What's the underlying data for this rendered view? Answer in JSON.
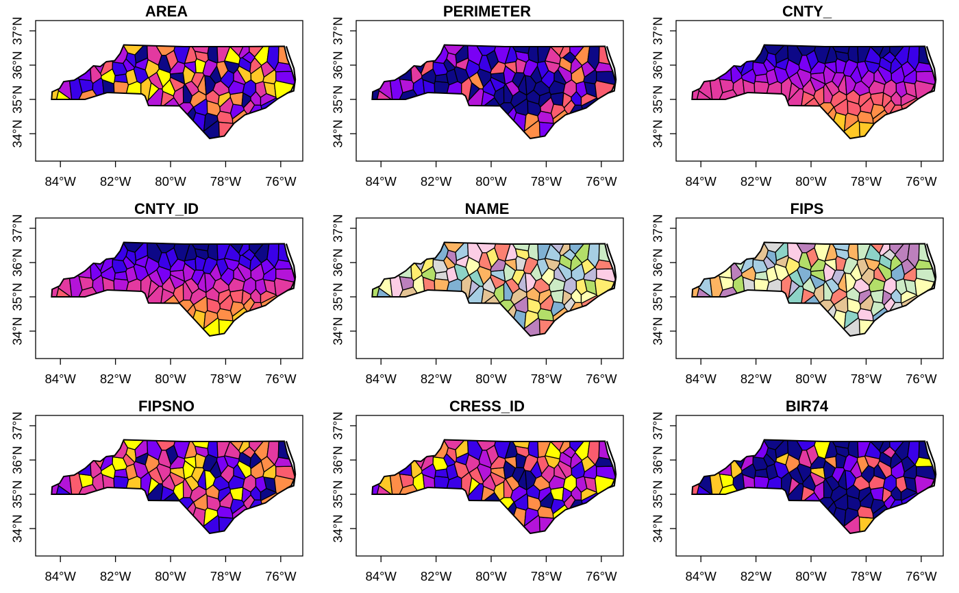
{
  "figure": {
    "rows": 3,
    "cols": 3,
    "x_tick_labels": [
      "84°W",
      "82°W",
      "80°W",
      "78°W",
      "76°W"
    ],
    "y_tick_labels": [
      "34°N",
      "35°N",
      "36°N",
      "37°N"
    ],
    "x_range_deg": [
      -84.9,
      -75.2
    ],
    "y_range_deg": [
      33.2,
      37.3
    ]
  },
  "palettes": {
    "continuous": [
      "#0D0887",
      "#3A00E8",
      "#7A00F5",
      "#B414D8",
      "#E339A0",
      "#FA5C6E",
      "#FF8E48",
      "#FFC827",
      "#FFFF00"
    ],
    "categorical": [
      "#8DD3C7",
      "#FFFFB3",
      "#BEBADA",
      "#FB8072",
      "#80B1D3",
      "#FDB462",
      "#B3DE69",
      "#FCCDE5",
      "#D9D9D9",
      "#BC80BD",
      "#CCEBC5",
      "#FFED6F",
      "#A6CEE3",
      "#E5C494"
    ]
  },
  "panels": [
    {
      "id": "area",
      "title": "AREA",
      "mode": "continuous",
      "pattern": "hash",
      "seed": 3
    },
    {
      "id": "perimeter",
      "title": "PERIMETER",
      "mode": "continuous",
      "pattern": "hashlow",
      "seed": 7
    },
    {
      "id": "cnty",
      "title": "CNTY_",
      "mode": "continuous",
      "pattern": "southgrad",
      "seed": 11
    },
    {
      "id": "cnty-id",
      "title": "CNTY_ID",
      "mode": "continuous",
      "pattern": "southgrad",
      "seed": 13
    },
    {
      "id": "name",
      "title": "NAME",
      "mode": "categorical",
      "pattern": "cat",
      "seed": 17
    },
    {
      "id": "fips",
      "title": "FIPS",
      "mode": "categorical",
      "pattern": "cat",
      "seed": 23
    },
    {
      "id": "fipsno",
      "title": "FIPSNO",
      "mode": "continuous",
      "pattern": "hash",
      "seed": 29
    },
    {
      "id": "cress-id",
      "title": "CRESS_ID",
      "mode": "continuous",
      "pattern": "hash",
      "seed": 31
    },
    {
      "id": "bir74",
      "title": "BIR74",
      "mode": "continuous",
      "pattern": "skewlow",
      "seed": 37
    }
  ]
}
